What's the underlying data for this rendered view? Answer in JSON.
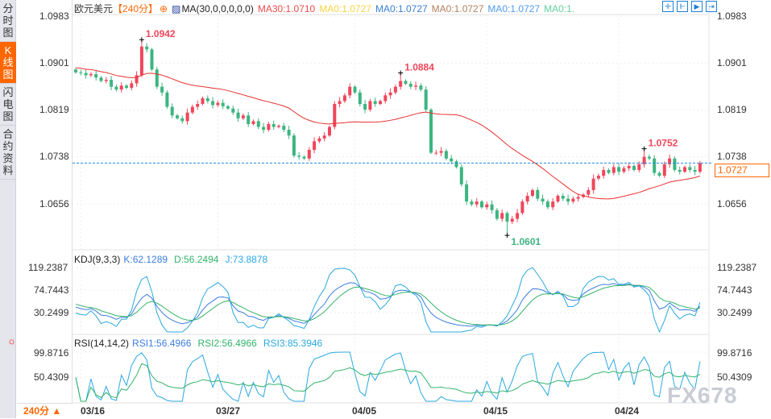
{
  "sidebar": {
    "tabs": [
      {
        "label": "分时图"
      },
      {
        "label": "K线图"
      },
      {
        "label": "闪电图"
      },
      {
        "label": "合约资料"
      }
    ],
    "active": 1
  },
  "header": {
    "symbol": "欧元美元",
    "period": "【240分】",
    "ma_label": "MA(30,0,0,0,0,0)",
    "ma_values": [
      "MA30:1.0710",
      "MA0:1.0727",
      "MA0:1.0727",
      "MA0:1.0727",
      "MA0:1.0727",
      "MA0:1."
    ]
  },
  "price_axis": {
    "ticks": [
      "1.0983",
      "1.0901",
      "1.0819",
      "1.0738",
      "1.0656"
    ],
    "tick_values": [
      1.0983,
      1.0901,
      1.0819,
      1.0738,
      1.0656
    ],
    "current": "1.0727"
  },
  "annotations": [
    {
      "text": "1.0942",
      "index": 13
    },
    {
      "text": "1.0884",
      "index": 64
    },
    {
      "text": "1.0601",
      "index": 85
    },
    {
      "text": "1.0752",
      "index": 112
    }
  ],
  "kdj": {
    "label": "KDJ(9,3,3)",
    "k": "K:62.1289",
    "d": "D:56.2494",
    "j": "J:73.8878",
    "ticks": [
      "119.2387",
      "74.7443",
      "30.2499"
    ]
  },
  "rsi": {
    "label": "RSI(14,14,2)",
    "rsi1": "RSI1:56.4966",
    "rsi2": "RSI2:56.4966",
    "rsi3": "RSI3:85.3946",
    "ticks": [
      "99.8716",
      "50.4309"
    ]
  },
  "x_axis": {
    "dates": [
      "03/16",
      "03/27",
      "04/05",
      "04/15",
      "04/24"
    ],
    "date_index": [
      1,
      28,
      55,
      81,
      107
    ]
  },
  "timeframe": "240分 ▲",
  "watermark": "FX678",
  "colors": {
    "up": "#f0465a",
    "down": "#3cb580",
    "ma30": "#e8312f",
    "k": "#3b7de0",
    "d": "#33b36b",
    "j": "#2aa8e0",
    "current": "#1e88e5"
  },
  "chart_data": {
    "type": "candlestick",
    "closes": [
      1.0885,
      1.0884,
      1.088,
      1.0882,
      1.0876,
      1.087,
      1.0872,
      1.086,
      1.0855,
      1.0862,
      1.0858,
      1.0866,
      1.088,
      1.093,
      1.0925,
      1.089,
      1.086,
      1.085,
      1.0825,
      1.081,
      1.0805,
      1.08,
      1.0815,
      1.0825,
      1.083,
      1.084,
      1.0835,
      1.0828,
      1.0832,
      1.0826,
      1.0822,
      1.0815,
      1.0805,
      1.081,
      1.0795,
      1.08,
      1.079,
      1.0785,
      1.0795,
      1.079,
      1.0792,
      1.0785,
      1.0775,
      1.074,
      1.0738,
      1.0735,
      1.075,
      1.0765,
      1.077,
      1.0775,
      1.079,
      1.083,
      1.0835,
      1.0845,
      1.086,
      1.085,
      1.083,
      1.082,
      1.0835,
      1.083,
      1.0835,
      1.0845,
      1.085,
      1.086,
      1.087,
      1.0865,
      1.086,
      1.0862,
      1.0855,
      1.082,
      1.0745,
      1.0745,
      1.0748,
      1.0735,
      1.073,
      1.072,
      1.069,
      1.066,
      1.0655,
      1.066,
      1.065,
      1.0655,
      1.0645,
      1.063,
      1.064,
      1.0625,
      1.063,
      1.064,
      1.066,
      1.067,
      1.068,
      1.0665,
      1.066,
      1.065,
      1.066,
      1.067,
      1.0665,
      1.066,
      1.0665,
      1.0668,
      1.0672,
      1.068,
      1.07,
      1.0705,
      1.0715,
      1.071,
      1.072,
      1.0712,
      1.0718,
      1.0722,
      1.0715,
      1.0725,
      1.0738,
      1.0735,
      1.071,
      1.0705,
      1.0725,
      1.0735,
      1.0715,
      1.0712,
      1.072,
      1.0715,
      1.0712,
      1.0727
    ],
    "highs_marked": {
      "13": 1.0942,
      "64": 1.0884,
      "112": 1.0752
    },
    "lows_marked": {
      "85": 1.0601
    },
    "ma_period": 30
  }
}
